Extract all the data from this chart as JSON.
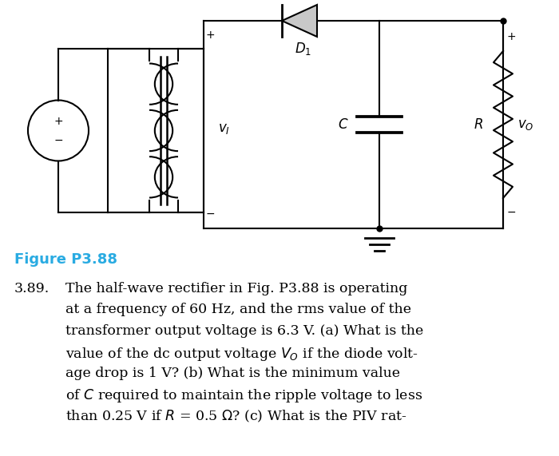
{
  "bg_color": "#ffffff",
  "figure_label": "Figure P3.88",
  "figure_label_color": "#29ABE2",
  "figure_label_fontsize": 13,
  "problem_number": "3.89.",
  "circuit_box_color": "#000000",
  "line_width": 1.5,
  "dot_size": 5,
  "text_lines": [
    "The half-wave rectifier in Fig. P3.88 is operating",
    "at a frequency of 60 Hz, and the rms value of the",
    "transformer output voltage is 6.3 V. (a) What is the",
    "value of the dc output voltage $V_O$ if the diode volt-",
    "age drop is 1 V? (b) What is the minimum value",
    "of $C$ required to maintain the ripple voltage to less",
    "than 0.25 V if $R$ = 0.5 $\\Omega$? (c) What is the PIV rat-"
  ]
}
